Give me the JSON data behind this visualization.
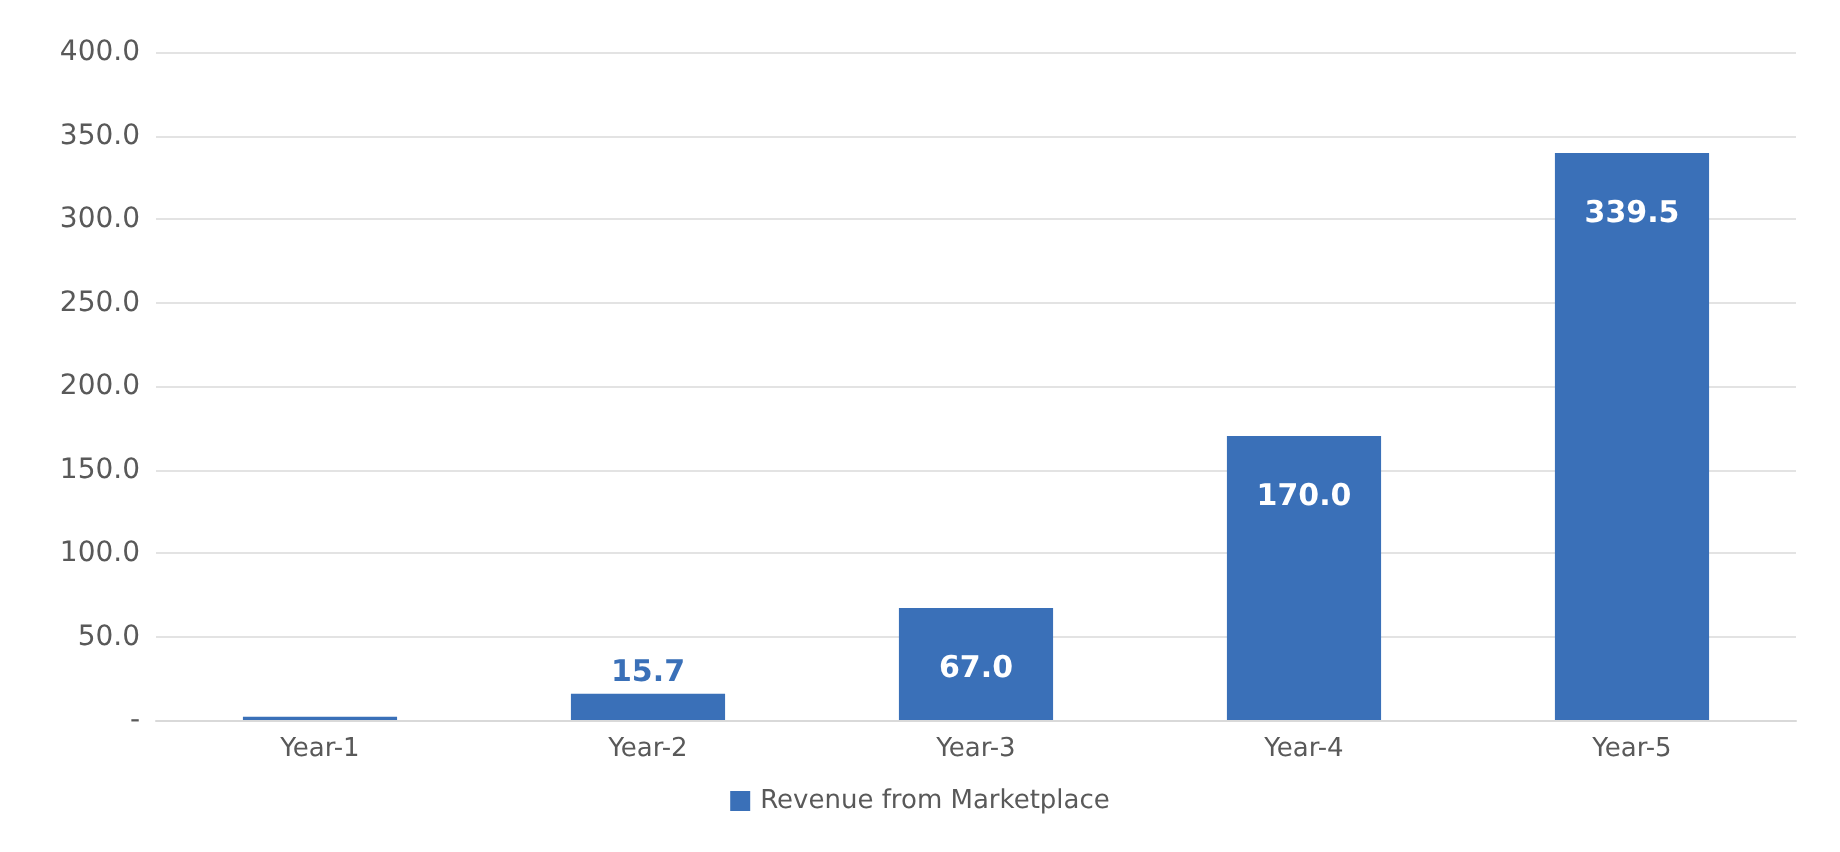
{
  "chart_data": {
    "type": "bar",
    "categories": [
      "Year-1",
      "Year-2",
      "Year-3",
      "Year-4",
      "Year-5"
    ],
    "series": [
      {
        "name": "Revenue from Marketplace",
        "color": "#3a70b8",
        "values": [
          2.0,
          15.7,
          67.0,
          170.0,
          339.5
        ],
        "value_labels": [
          null,
          "15.7",
          "67.0",
          "170.0",
          "339.5"
        ]
      }
    ],
    "ylim": [
      0,
      400
    ],
    "yticks": [
      {
        "value": 0,
        "label": "-"
      },
      {
        "value": 50,
        "label": "50.0"
      },
      {
        "value": 100,
        "label": "100.0"
      },
      {
        "value": 150,
        "label": "150.0"
      },
      {
        "value": 200,
        "label": "200.0"
      },
      {
        "value": 250,
        "label": "250.0"
      },
      {
        "value": 300,
        "label": "300.0"
      },
      {
        "value": 350,
        "label": "350.0"
      },
      {
        "value": 400,
        "label": "400.0"
      }
    ],
    "grid": "y",
    "legend": "bottom"
  }
}
